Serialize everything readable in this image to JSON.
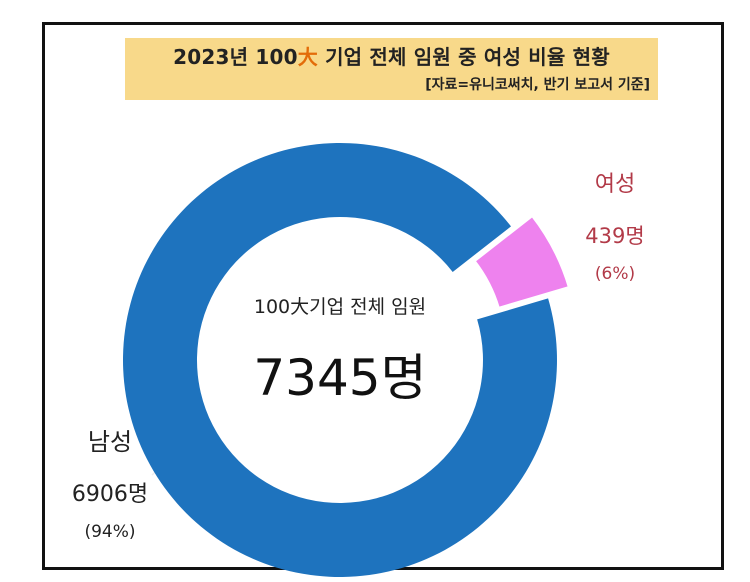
{
  "header": {
    "title_prefix": "2023년 100",
    "title_accent": "大",
    "title_suffix": " 기업 전체 임원 중 여성 비율 현황",
    "subtitle": "[자료=유니코써치, 반기 보고서 기준]"
  },
  "center": {
    "label": "100大기업 전체 임원",
    "value": "7345명"
  },
  "colors": {
    "male": "#1e73be",
    "female": "#ee82ee",
    "title_bg": "#f8d98a",
    "female_text": "#b23a48"
  },
  "chart_data": {
    "type": "pie",
    "title": "2023년 100大 기업 전체 임원 중 여성 비율 현황",
    "subtitle": "[자료=유니코써치, 반기 보고서 기준]",
    "total": 7345,
    "center_text": [
      "100大기업 전체 임원",
      "7345명"
    ],
    "donut": true,
    "slices": [
      {
        "name": "남성",
        "value": 6906,
        "count_label": "6906명",
        "percent": 94,
        "percent_label": "(94%)",
        "color": "#1e73be"
      },
      {
        "name": "여성",
        "value": 439,
        "count_label": "439명",
        "percent": 6,
        "percent_label": "(6%)",
        "color": "#ee82ee",
        "exploded": true
      }
    ]
  }
}
